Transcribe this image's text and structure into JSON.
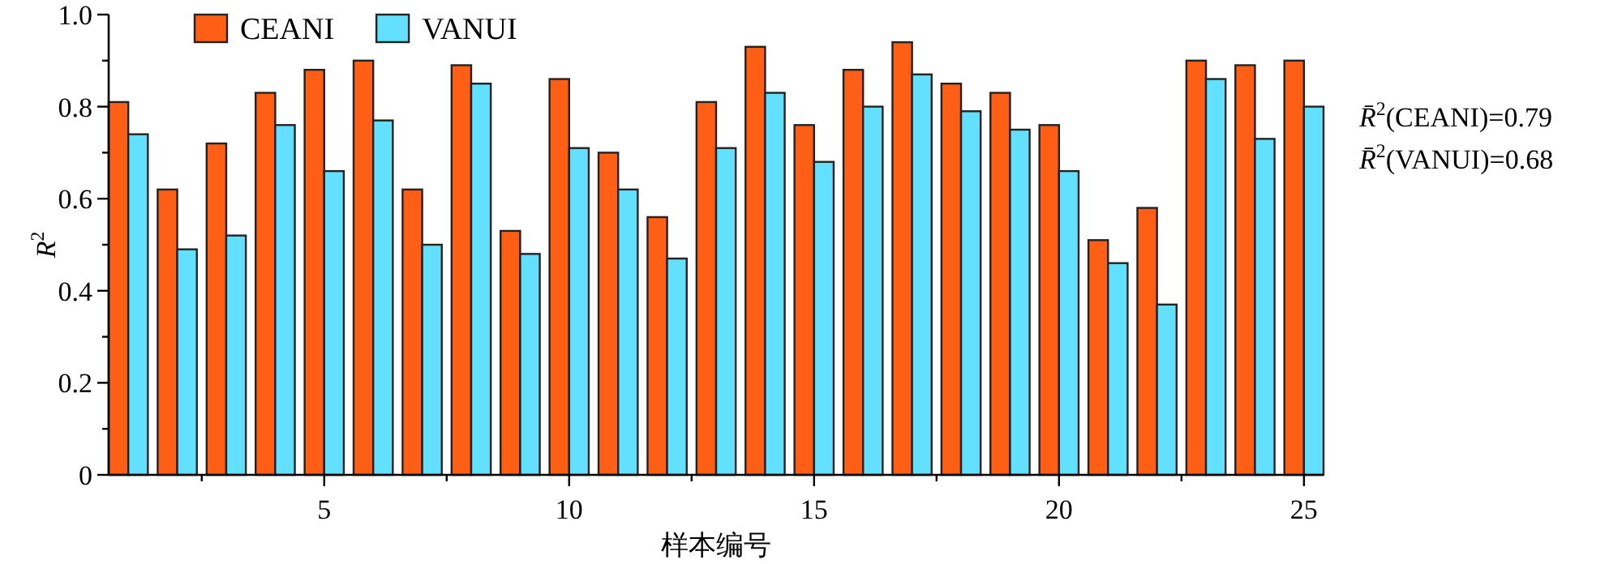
{
  "chart_data": {
    "type": "bar",
    "xlabel": "样本编号",
    "ylabel": "*R*$^{2}$",
    "x": [
      1,
      2,
      3,
      4,
      5,
      6,
      7,
      8,
      9,
      10,
      11,
      12,
      13,
      14,
      15,
      16,
      17,
      18,
      19,
      20,
      21,
      22,
      23,
      24,
      25
    ],
    "series": [
      {
        "name": "CEANI",
        "color": "#ff5f14",
        "values": [
          0.81,
          0.62,
          0.72,
          0.83,
          0.88,
          0.9,
          0.62,
          0.89,
          0.53,
          0.86,
          0.7,
          0.56,
          0.81,
          0.93,
          0.76,
          0.88,
          0.94,
          0.85,
          0.83,
          0.76,
          0.51,
          0.58,
          0.9,
          0.89,
          0.9
        ]
      },
      {
        "name": "VANUI",
        "color": "#62e0fe",
        "values": [
          0.74,
          0.49,
          0.52,
          0.76,
          0.66,
          0.77,
          0.5,
          0.85,
          0.48,
          0.71,
          0.62,
          0.47,
          0.71,
          0.83,
          0.68,
          0.8,
          0.87,
          0.79,
          0.75,
          0.66,
          0.46,
          0.37,
          0.86,
          0.73,
          0.8
        ]
      }
    ],
    "xlim": [
      0.6,
      25.4
    ],
    "xticks": [
      {
        "value": 2.5,
        "label": null
      },
      5,
      {
        "value": 7.5,
        "label": null
      },
      10,
      {
        "value": 12.5,
        "label": null
      },
      15,
      {
        "value": 17.5,
        "label": null
      },
      20,
      {
        "value": 22.5,
        "label": null
      },
      25
    ],
    "ylim": [
      0,
      1
    ],
    "yticks": [
      0,
      {
        "value": 0.1,
        "label": null
      },
      0.2,
      {
        "value": 0.3,
        "label": null
      },
      0.4,
      {
        "value": 0.5,
        "label": null
      },
      0.6,
      {
        "value": 0.7,
        "label": null
      },
      0.8,
      {
        "value": 0.9,
        "label": null
      },
      {
        "value": 1,
        "label": "1.0"
      }
    ],
    "legend": "top left",
    "annotations": [
      "*R̄*$^{2}$(CEANI)=0.79",
      "*R̄*$^{2}$(VANUI)=0.68"
    ]
  }
}
